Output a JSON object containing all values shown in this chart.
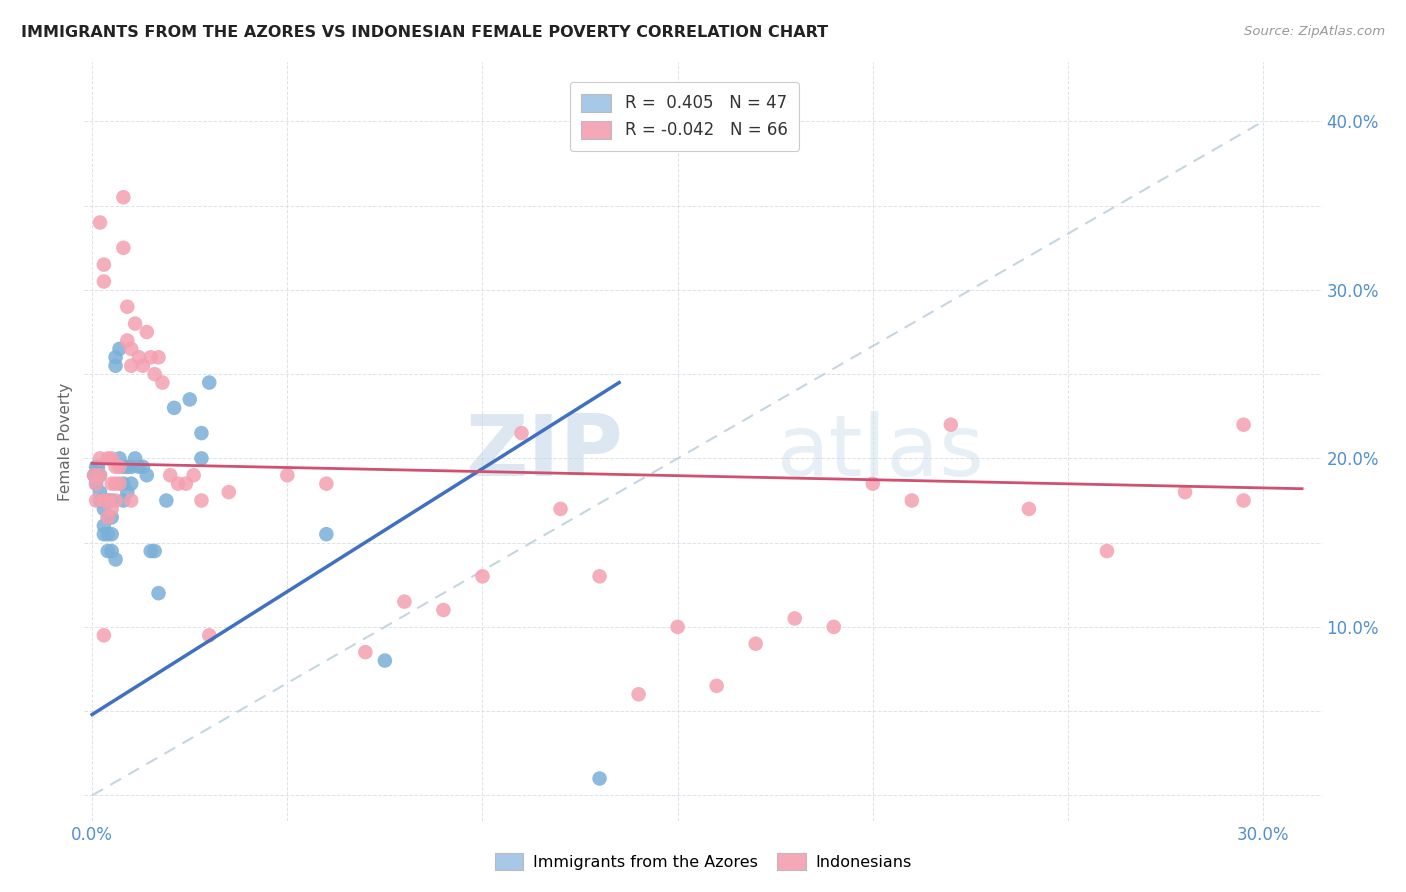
{
  "title": "IMMIGRANTS FROM THE AZORES VS INDONESIAN FEMALE POVERTY CORRELATION CHART",
  "source": "Source: ZipAtlas.com",
  "ylabel": "Female Poverty",
  "xlim": [
    -0.002,
    0.315
  ],
  "ylim": [
    -0.015,
    0.435
  ],
  "legend_label1": "R =  0.405   N = 47",
  "legend_label2": "R = -0.042   N = 66",
  "legend_color1": "#a8c8e8",
  "legend_color2": "#f4a8b8",
  "scatter_azores_color": "#7ab0d8",
  "scatter_indonesian_color": "#f4a0b0",
  "trendline_azores_color": "#4070c0",
  "trendline_indonesian_color": "#d05070",
  "diagonal_color": "#b8ccd8",
  "watermark_zip": "ZIP",
  "watermark_atlas": "atlas",
  "azores_x": [
    0.0005,
    0.001,
    0.001,
    0.0015,
    0.002,
    0.002,
    0.002,
    0.003,
    0.003,
    0.003,
    0.003,
    0.004,
    0.004,
    0.004,
    0.004,
    0.005,
    0.005,
    0.005,
    0.005,
    0.006,
    0.006,
    0.006,
    0.007,
    0.007,
    0.008,
    0.008,
    0.008,
    0.009,
    0.009,
    0.01,
    0.01,
    0.011,
    0.012,
    0.013,
    0.014,
    0.015,
    0.016,
    0.017,
    0.019,
    0.021,
    0.025,
    0.028,
    0.028,
    0.03,
    0.06,
    0.075,
    0.13
  ],
  "azores_y": [
    0.19,
    0.195,
    0.185,
    0.195,
    0.19,
    0.18,
    0.175,
    0.175,
    0.17,
    0.16,
    0.155,
    0.175,
    0.165,
    0.155,
    0.145,
    0.175,
    0.165,
    0.155,
    0.145,
    0.26,
    0.255,
    0.14,
    0.265,
    0.2,
    0.195,
    0.185,
    0.175,
    0.195,
    0.18,
    0.195,
    0.185,
    0.2,
    0.195,
    0.195,
    0.19,
    0.145,
    0.145,
    0.12,
    0.175,
    0.23,
    0.235,
    0.215,
    0.2,
    0.245,
    0.155,
    0.08,
    0.01
  ],
  "indonesian_x": [
    0.0005,
    0.001,
    0.001,
    0.002,
    0.002,
    0.002,
    0.003,
    0.003,
    0.003,
    0.004,
    0.004,
    0.004,
    0.005,
    0.005,
    0.005,
    0.006,
    0.006,
    0.006,
    0.007,
    0.007,
    0.008,
    0.008,
    0.009,
    0.009,
    0.01,
    0.01,
    0.01,
    0.011,
    0.012,
    0.013,
    0.014,
    0.015,
    0.016,
    0.017,
    0.018,
    0.02,
    0.022,
    0.024,
    0.026,
    0.028,
    0.03,
    0.035,
    0.05,
    0.06,
    0.07,
    0.08,
    0.09,
    0.1,
    0.11,
    0.12,
    0.13,
    0.14,
    0.15,
    0.16,
    0.17,
    0.18,
    0.19,
    0.2,
    0.21,
    0.22,
    0.24,
    0.26,
    0.28,
    0.295,
    0.295,
    0.003
  ],
  "indonesian_y": [
    0.19,
    0.185,
    0.175,
    0.2,
    0.19,
    0.34,
    0.315,
    0.305,
    0.175,
    0.2,
    0.175,
    0.165,
    0.2,
    0.185,
    0.17,
    0.195,
    0.185,
    0.175,
    0.195,
    0.185,
    0.355,
    0.325,
    0.29,
    0.27,
    0.265,
    0.255,
    0.175,
    0.28,
    0.26,
    0.255,
    0.275,
    0.26,
    0.25,
    0.26,
    0.245,
    0.19,
    0.185,
    0.185,
    0.19,
    0.175,
    0.095,
    0.18,
    0.19,
    0.185,
    0.085,
    0.115,
    0.11,
    0.13,
    0.215,
    0.17,
    0.13,
    0.06,
    0.1,
    0.065,
    0.09,
    0.105,
    0.1,
    0.185,
    0.175,
    0.22,
    0.17,
    0.145,
    0.18,
    0.175,
    0.22,
    0.095
  ],
  "trendline_azores_x0": 0.0,
  "trendline_azores_x1": 0.135,
  "trendline_azores_y0": 0.048,
  "trendline_azores_y1": 0.245,
  "trendline_indonesian_x0": 0.0,
  "trendline_indonesian_x1": 0.31,
  "trendline_indonesian_y0": 0.197,
  "trendline_indonesian_y1": 0.182
}
